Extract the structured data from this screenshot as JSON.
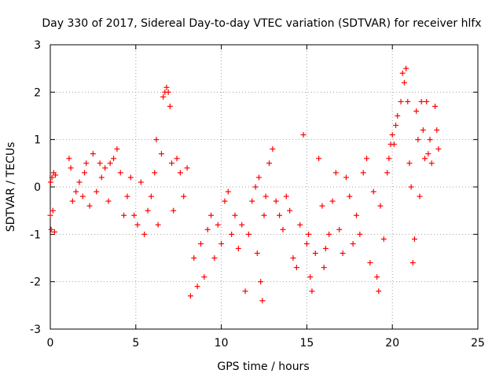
{
  "chart_data": {
    "type": "scatter",
    "title": "Day 330 of 2017, Sidereal Day-to-day VTEC variation (SDTVAR) for receiver hlfx",
    "xlabel": "GPS time / hours",
    "ylabel": "SDTVAR / TECUs",
    "xlim": [
      0,
      25
    ],
    "ylim": [
      -3,
      3
    ],
    "xticks": [
      0,
      5,
      10,
      15,
      20,
      25
    ],
    "yticks": [
      -3,
      -2,
      -1,
      0,
      1,
      2,
      3
    ],
    "grid": true,
    "marker": "+",
    "marker_color": "#ff0000",
    "series": [
      {
        "name": "SDTVAR",
        "points": [
          [
            0.0,
            -0.6
          ],
          [
            0.02,
            0.1
          ],
          [
            0.05,
            -0.9
          ],
          [
            0.1,
            0.2
          ],
          [
            0.15,
            -0.5
          ],
          [
            0.2,
            0.3
          ],
          [
            0.25,
            -0.95
          ],
          [
            0.3,
            0.25
          ],
          [
            1.1,
            0.6
          ],
          [
            1.2,
            0.4
          ],
          [
            1.3,
            -0.3
          ],
          [
            1.5,
            -0.1
          ],
          [
            1.7,
            0.1
          ],
          [
            1.9,
            -0.2
          ],
          [
            2.0,
            0.3
          ],
          [
            2.1,
            0.5
          ],
          [
            2.3,
            -0.4
          ],
          [
            2.5,
            0.7
          ],
          [
            2.7,
            -0.1
          ],
          [
            2.9,
            0.5
          ],
          [
            3.0,
            0.2
          ],
          [
            3.2,
            0.4
          ],
          [
            3.4,
            -0.3
          ],
          [
            3.5,
            0.5
          ],
          [
            3.7,
            0.6
          ],
          [
            3.9,
            0.8
          ],
          [
            4.1,
            0.3
          ],
          [
            4.3,
            -0.6
          ],
          [
            4.5,
            -0.2
          ],
          [
            4.7,
            0.2
          ],
          [
            4.9,
            -0.6
          ],
          [
            5.1,
            -0.8
          ],
          [
            5.3,
            0.1
          ],
          [
            5.5,
            -1.0
          ],
          [
            5.7,
            -0.5
          ],
          [
            5.9,
            -0.2
          ],
          [
            6.1,
            0.3
          ],
          [
            6.2,
            1.0
          ],
          [
            6.3,
            -0.8
          ],
          [
            6.5,
            0.7
          ],
          [
            6.6,
            1.9
          ],
          [
            6.7,
            2.0
          ],
          [
            6.8,
            2.1
          ],
          [
            6.9,
            2.0
          ],
          [
            7.0,
            1.7
          ],
          [
            7.1,
            0.5
          ],
          [
            7.2,
            -0.5
          ],
          [
            7.4,
            0.6
          ],
          [
            7.6,
            0.3
          ],
          [
            7.8,
            -0.2
          ],
          [
            8.0,
            0.4
          ],
          [
            8.2,
            -2.3
          ],
          [
            8.4,
            -1.5
          ],
          [
            8.6,
            -2.1
          ],
          [
            8.8,
            -1.2
          ],
          [
            9.0,
            -1.9
          ],
          [
            9.2,
            -0.9
          ],
          [
            9.4,
            -0.6
          ],
          [
            9.6,
            -1.5
          ],
          [
            9.8,
            -0.8
          ],
          [
            10.0,
            -1.2
          ],
          [
            10.2,
            -0.3
          ],
          [
            10.4,
            -0.1
          ],
          [
            10.6,
            -1.0
          ],
          [
            10.8,
            -0.6
          ],
          [
            11.0,
            -1.3
          ],
          [
            11.2,
            -0.8
          ],
          [
            11.4,
            -2.2
          ],
          [
            11.6,
            -1.0
          ],
          [
            11.8,
            -0.3
          ],
          [
            12.0,
            0.0
          ],
          [
            12.1,
            -1.4
          ],
          [
            12.2,
            0.2
          ],
          [
            12.3,
            -2.0
          ],
          [
            12.4,
            -2.4
          ],
          [
            12.5,
            -0.6
          ],
          [
            12.6,
            -0.2
          ],
          [
            12.8,
            0.5
          ],
          [
            13.0,
            0.8
          ],
          [
            13.2,
            -0.3
          ],
          [
            13.4,
            -0.6
          ],
          [
            13.6,
            -0.9
          ],
          [
            13.8,
            -0.2
          ],
          [
            14.0,
            -0.5
          ],
          [
            14.2,
            -1.5
          ],
          [
            14.4,
            -1.7
          ],
          [
            14.6,
            -0.8
          ],
          [
            14.8,
            1.1
          ],
          [
            15.0,
            -1.2
          ],
          [
            15.1,
            -1.0
          ],
          [
            15.2,
            -1.9
          ],
          [
            15.3,
            -2.2
          ],
          [
            15.5,
            -1.4
          ],
          [
            15.7,
            0.6
          ],
          [
            15.9,
            -0.4
          ],
          [
            16.0,
            -1.7
          ],
          [
            16.1,
            -1.3
          ],
          [
            16.3,
            -1.0
          ],
          [
            16.5,
            -0.3
          ],
          [
            16.7,
            0.3
          ],
          [
            16.9,
            -0.9
          ],
          [
            17.1,
            -1.4
          ],
          [
            17.3,
            0.2
          ],
          [
            17.5,
            -0.2
          ],
          [
            17.7,
            -1.2
          ],
          [
            17.9,
            -0.6
          ],
          [
            18.1,
            -1.0
          ],
          [
            18.3,
            0.3
          ],
          [
            18.5,
            0.6
          ],
          [
            18.7,
            -1.6
          ],
          [
            18.9,
            -0.1
          ],
          [
            19.1,
            -1.9
          ],
          [
            19.2,
            -2.2
          ],
          [
            19.3,
            -0.4
          ],
          [
            19.5,
            -1.1
          ],
          [
            19.7,
            0.3
          ],
          [
            19.8,
            0.6
          ],
          [
            19.9,
            0.9
          ],
          [
            20.0,
            1.1
          ],
          [
            20.1,
            0.9
          ],
          [
            20.2,
            1.3
          ],
          [
            20.3,
            1.5
          ],
          [
            20.5,
            1.8
          ],
          [
            20.6,
            2.4
          ],
          [
            20.7,
            2.2
          ],
          [
            20.8,
            2.5
          ],
          [
            20.9,
            1.8
          ],
          [
            21.0,
            0.5
          ],
          [
            21.1,
            0.0
          ],
          [
            21.2,
            -1.6
          ],
          [
            21.3,
            -1.1
          ],
          [
            21.4,
            1.6
          ],
          [
            21.5,
            1.0
          ],
          [
            21.6,
            -0.2
          ],
          [
            21.7,
            1.8
          ],
          [
            21.8,
            1.2
          ],
          [
            21.9,
            0.6
          ],
          [
            22.0,
            1.8
          ],
          [
            22.1,
            0.7
          ],
          [
            22.2,
            1.0
          ],
          [
            22.3,
            0.5
          ],
          [
            22.5,
            1.7
          ],
          [
            22.6,
            1.2
          ],
          [
            22.7,
            0.8
          ]
        ]
      }
    ]
  }
}
